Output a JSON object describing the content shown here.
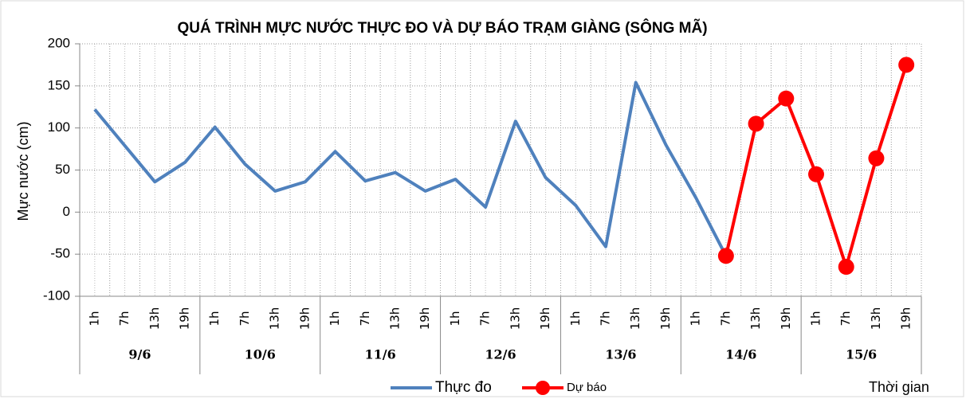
{
  "chart_data": {
    "type": "line",
    "title": "QUÁ TRÌNH MỰC NƯỚC THỰC ĐO VÀ DỰ BÁO TRẠM  GIÀNG (SÔNG MÃ)",
    "y_label": "Mực nước (cm)",
    "x_label": "Thời gian",
    "categories": [
      "1h",
      "7h",
      "13h",
      "19h",
      "1h",
      "7h",
      "13h",
      "19h",
      "1h",
      "7h",
      "13h",
      "19h",
      "1h",
      "7h",
      "13h",
      "19h",
      "1h",
      "7h",
      "13h",
      "19h",
      "1h",
      "7h",
      "13h",
      "19h",
      "1h",
      "7h",
      "13h",
      "19h"
    ],
    "groups": [
      "9/6",
      "10/6",
      "11/6",
      "12/6",
      "13/6",
      "14/6",
      "15/6"
    ],
    "series": [
      {
        "name": "Thực đo",
        "color": "#4f81bd",
        "marker": false,
        "values": [
          122,
          79,
          36,
          59,
          101,
          57,
          25,
          36,
          72,
          37,
          47,
          25,
          39,
          6,
          108,
          41,
          8,
          -41,
          154,
          80,
          17,
          -52,
          null,
          null,
          null,
          null,
          null,
          null
        ]
      },
      {
        "name": "Dự báo",
        "color": "#ff0000",
        "marker": true,
        "values": [
          null,
          null,
          null,
          null,
          null,
          null,
          null,
          null,
          null,
          null,
          null,
          null,
          null,
          null,
          null,
          null,
          null,
          null,
          null,
          null,
          null,
          -52,
          105,
          135,
          45,
          -65,
          64,
          175
        ]
      }
    ],
    "ylim": [
      -100,
      200
    ],
    "yticks": [
      -100,
      -50,
      0,
      50,
      100,
      150,
      200
    ],
    "grid": true
  }
}
